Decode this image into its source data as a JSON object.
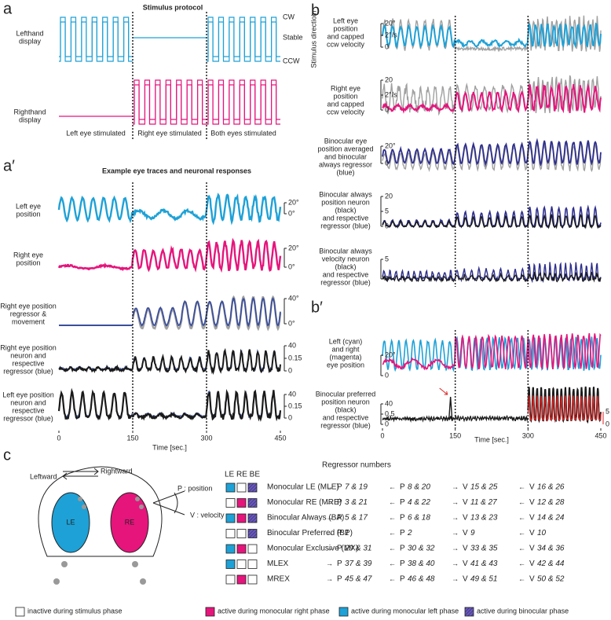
{
  "panel_a": {
    "letter": "a",
    "title": "Stimulus protocol",
    "rows": [
      {
        "label": [
          "Lefthand",
          "display"
        ]
      },
      {
        "label": [
          "Righthand",
          "display"
        ]
      }
    ],
    "levels": [
      "CW",
      "Stable",
      "CCW"
    ],
    "phases": [
      "Left eye stimulated",
      "Right eye stimulated",
      "Both eyes stimulated"
    ]
  },
  "panel_a2": {
    "letter": "a′",
    "title": "Example eye traces and neuronal responses",
    "rows": [
      {
        "label": [
          "Left eye",
          "position"
        ],
        "scale": [
          "20°",
          "0°"
        ]
      },
      {
        "label": [
          "Right eye",
          "position"
        ],
        "scale": [
          "20°",
          "0°"
        ]
      },
      {
        "label": [
          "Right eye position",
          "regressor &",
          "movement"
        ],
        "scale": [
          "40°",
          "0°"
        ]
      },
      {
        "label": [
          "Right eye position",
          "neuron and",
          "respective",
          "regressor (blue)"
        ],
        "scale": [
          "40",
          "0.15",
          "0"
        ]
      },
      {
        "label": [
          "Left eye position",
          "neuron and",
          "respective",
          "regressor (blue)"
        ],
        "scale": [
          "40",
          "0.15",
          "0"
        ]
      }
    ],
    "x_ticks": [
      0,
      150,
      300,
      450
    ],
    "x_label": "Time [sec.]"
  },
  "panel_b": {
    "letter": "b",
    "side_label": "Stimulus directioin",
    "rows": [
      {
        "label": [
          "Left eye",
          "position",
          "and capped",
          "ccw velocity"
        ],
        "scale": [
          "20°",
          "2°/s",
          "0"
        ]
      },
      {
        "label": [
          "Right eye",
          "position",
          "and capped",
          "ccw velocity"
        ],
        "scale": [
          "20",
          "2°/s",
          "0"
        ]
      },
      {
        "label": [
          "Binocular eye",
          "position averaged",
          "and binocular",
          "always regressor",
          "(blue)"
        ],
        "scale": [
          "20°",
          "0"
        ]
      },
      {
        "label": [
          "Binocular always",
          "position neuron",
          "(black)",
          "and respective",
          "regressor (blue)"
        ],
        "scale": [
          "20",
          "5",
          "0"
        ]
      },
      {
        "label": [
          "Binocular always",
          "velocity neuron",
          "(black)",
          "and respective",
          "regressor (blue)"
        ],
        "scale": [
          "5",
          "0"
        ]
      }
    ]
  },
  "panel_b2": {
    "letter": "b′",
    "rows": [
      {
        "label": [
          "Left (cyan)",
          "and right",
          "(magenta)",
          "eye position"
        ],
        "scale": [
          "20°",
          "0"
        ]
      },
      {
        "label": [
          "Binocular preferred",
          "position neuron",
          "(black)",
          "and respective",
          "regressor (blue)"
        ],
        "scale": [
          "40",
          "0.5",
          "0"
        ],
        "right_scale": [
          "5",
          "0"
        ]
      }
    ],
    "x_ticks": [
      0,
      150,
      300,
      450
    ],
    "x_label": "Time [sec.]"
  },
  "panel_c": {
    "letter": "c",
    "leftward": "Leftward",
    "rightward": "Rightward",
    "position": "P : position",
    "velocity": "V : velocity",
    "le": "LE",
    "re": "RE",
    "columns": "LE RE BE",
    "regressor_header": "Regressor numbers",
    "rows": [
      {
        "name": "Monocular LE (MLE)",
        "squares": [
          "left",
          "none",
          "both"
        ],
        "cells": [
          [
            "→",
            "P",
            "7 & 19"
          ],
          [
            "←",
            "P",
            "8 & 20"
          ],
          [
            "→",
            "V",
            "15 & 25"
          ],
          [
            "←",
            "V",
            "16 & 26"
          ]
        ]
      },
      {
        "name": "Monocular RE (MRE)",
        "squares": [
          "none",
          "right",
          "both"
        ],
        "cells": [
          [
            "→",
            "P",
            "3 & 21"
          ],
          [
            "←",
            "P",
            "4 & 22"
          ],
          [
            "→",
            "V",
            "11 & 27"
          ],
          [
            "←",
            "V",
            "12 & 28"
          ]
        ]
      },
      {
        "name": "Binocular Always (BA)",
        "squares": [
          "left",
          "right",
          "both"
        ],
        "cells": [
          [
            "→",
            "P",
            "5 & 17"
          ],
          [
            "←",
            "P",
            "6 & 18"
          ],
          [
            "→",
            "V",
            "13 & 23"
          ],
          [
            "←",
            "V",
            "14 & 24"
          ]
        ]
      },
      {
        "name": "Binocular Preferred (BP)",
        "squares": [
          "none",
          "none",
          "both"
        ],
        "cells": [
          [
            "→",
            "P",
            "1"
          ],
          [
            "←",
            "P",
            "2"
          ],
          [
            "→",
            "V",
            "9"
          ],
          [
            "←",
            "V",
            "10"
          ]
        ]
      },
      {
        "name": "Monocular Exclusive (MX)",
        "squares": [
          "left",
          "right",
          "none"
        ],
        "cells": [
          [
            "→",
            "P",
            "29 & 31"
          ],
          [
            "←",
            "P",
            "30 & 32"
          ],
          [
            "→",
            "V",
            "33 & 35"
          ],
          [
            "←",
            "V",
            "34 & 36"
          ]
        ]
      },
      {
        "name": "MLEX",
        "squares": [
          "left",
          "none",
          "none"
        ],
        "cells": [
          [
            "→",
            "P",
            "37 & 39"
          ],
          [
            "←",
            "P",
            "38 & 40"
          ],
          [
            "→",
            "V",
            "41 & 43"
          ],
          [
            "←",
            "V",
            "42 & 44"
          ]
        ]
      },
      {
        "name": "MREX",
        "squares": [
          "none",
          "right",
          "none"
        ],
        "cells": [
          [
            "→",
            "P",
            "45 & 47"
          ],
          [
            "←",
            "P",
            "46 & 48"
          ],
          [
            "→",
            "V",
            "49 & 51"
          ],
          [
            "←",
            "V",
            "50 & 52"
          ]
        ]
      }
    ],
    "legend": [
      {
        "square": "none",
        "text": "inactive during stimulus phase"
      },
      {
        "square": "right",
        "text": "active during monocular right phase"
      },
      {
        "square": "left",
        "text": "active during monocular left phase"
      },
      {
        "square": "both",
        "text": "active during binocular phase"
      }
    ]
  }
}
